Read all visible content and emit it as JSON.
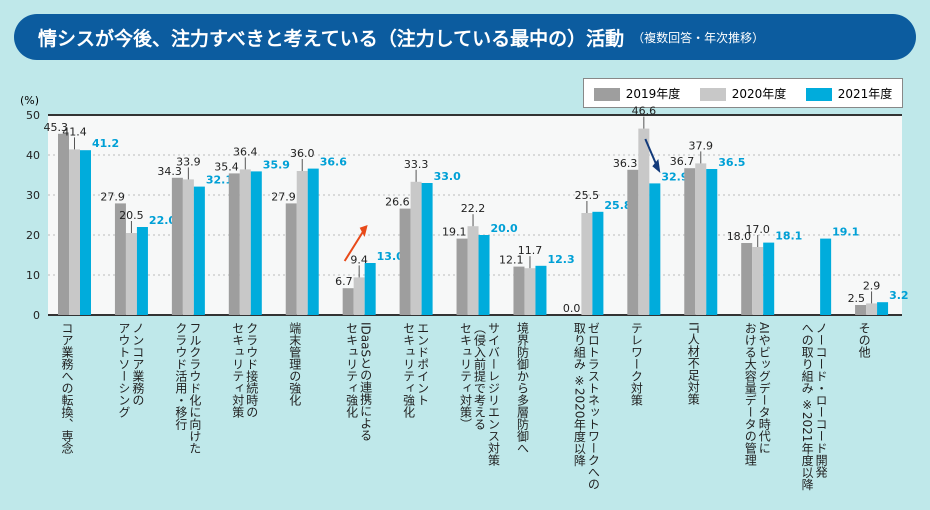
{
  "title": "情シスが今後、注力すべきと考えている（注力している最中の）活動",
  "subtitle": "（複数回答・年次推移）",
  "colors": {
    "2019": "#9e9e9e",
    "2020": "#c8c8c8",
    "2021": "#00acdc",
    "title_bg": "#0c5c9f"
  },
  "chart_data": {
    "type": "bar",
    "ylabel": "(%)",
    "ylim": [
      0,
      50
    ],
    "yticks": [
      "0",
      "10",
      "20",
      "30",
      "40",
      "50"
    ],
    "grid": true,
    "legend_position": "top-right",
    "categories": [
      "コア業務への転換、専念",
      "ノンコア業務の\nアウトソーシング",
      "フルクラウド化に向けた\nクラウド活用・移行",
      "クラウド接続時の\nセキュリティ対策",
      "端末管理の強化",
      "IDaaSとの連携による\nセキュリティ強化",
      "エンドポイント\nセキュリティ強化",
      "サイバーレジリエンス対策\n（侵入前提で考える\nセキュリティ対策）",
      "境界防御から多層防御へ",
      "ゼロトラストネットワークへの\n取り組み ※2020年度以降",
      "テレワーク対策",
      "IT人材不足対策",
      "AIやビッグデータ時代に\nおける大容量データの管理",
      "ノーコード・ローコード開発\nへの取り組み ※2021年度以降",
      "その他"
    ],
    "series": [
      {
        "name": "2019年度",
        "values": [
          45.3,
          27.9,
          34.3,
          35.4,
          27.9,
          6.7,
          26.6,
          19.1,
          12.1,
          0.0,
          36.3,
          36.7,
          18.0,
          null,
          2.5
        ]
      },
      {
        "name": "2020年度",
        "values": [
          41.4,
          20.5,
          33.9,
          36.4,
          36.0,
          9.4,
          33.3,
          22.2,
          11.7,
          25.5,
          46.6,
          37.9,
          17.0,
          null,
          2.9
        ]
      },
      {
        "name": "2021年度",
        "values": [
          41.2,
          22.0,
          32.1,
          35.9,
          36.6,
          13.0,
          33.0,
          20.0,
          12.3,
          25.8,
          32.9,
          36.5,
          18.1,
          19.1,
          3.2
        ]
      }
    ]
  }
}
